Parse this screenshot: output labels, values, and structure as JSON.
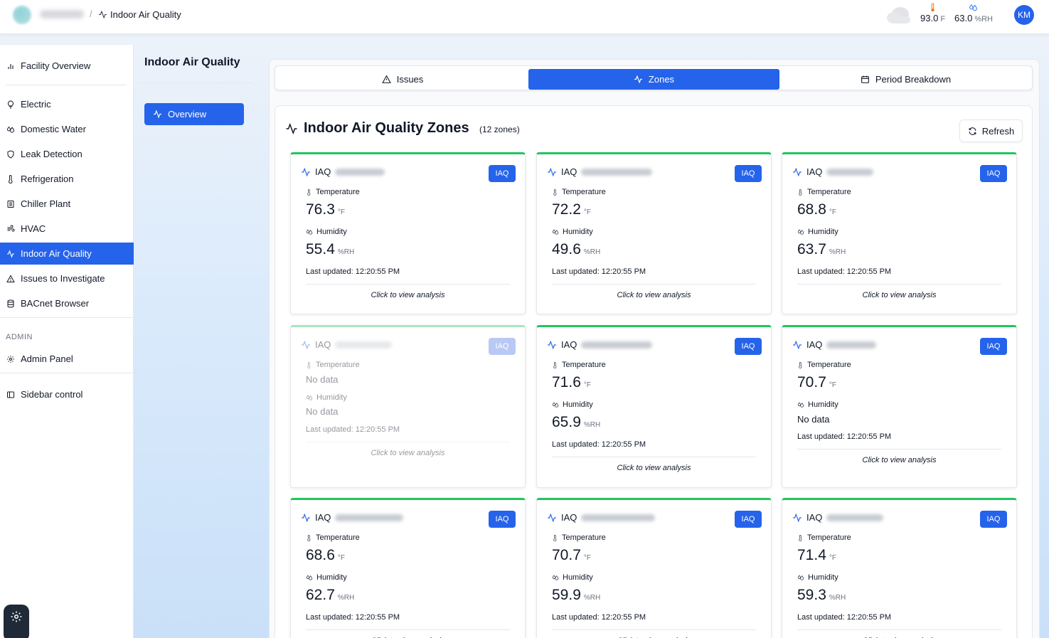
{
  "header": {
    "breadcrumb_current": "Indoor Air Quality",
    "breadcrumb_separator": "/",
    "temperature_value": "93.0",
    "temperature_unit": "F",
    "humidity_value": "63.0",
    "humidity_unit": "%RH",
    "avatar_initials": "KM"
  },
  "sidebar": {
    "items": [
      {
        "label": "Facility Overview",
        "icon": "bar-chart-icon"
      },
      {
        "label": "Electric",
        "icon": "lightbulb-icon"
      },
      {
        "label": "Domestic Water",
        "icon": "droplets-icon"
      },
      {
        "label": "Leak Detection",
        "icon": "shield-icon"
      },
      {
        "label": "Refrigeration",
        "icon": "thermometer-icon"
      },
      {
        "label": "Chiller Plant",
        "icon": "building-icon"
      },
      {
        "label": "HVAC",
        "icon": "wind-icon"
      },
      {
        "label": "Indoor Air Quality",
        "icon": "activity-icon"
      },
      {
        "label": "Issues to Investigate",
        "icon": "warning-icon"
      },
      {
        "label": "BACnet Browser",
        "icon": "database-icon"
      }
    ],
    "admin_section_label": "ADMIN",
    "admin_panel_label": "Admin Panel",
    "sidebar_control_label": "Sidebar control"
  },
  "subnav": {
    "title": "Indoor Air Quality",
    "overview_label": "Overview"
  },
  "tabs": {
    "issues": "Issues",
    "zones": "Zones",
    "period": "Period Breakdown"
  },
  "zones": {
    "title": "Indoor Air Quality Zones",
    "count_label": "(12 zones)",
    "refresh_label": "Refresh"
  },
  "card_labels": {
    "prefix": "IAQ",
    "badge": "IAQ",
    "temperature": "Temperature",
    "humidity": "Humidity",
    "temp_unit": "°F",
    "hum_unit": "%RH",
    "no_data": "No data",
    "updated": "Last updated: 12:20:55 PM",
    "cta": "Click to view analysis"
  },
  "cards": [
    {
      "temperature": "76.3",
      "humidity": "55.4"
    },
    {
      "temperature": "72.2",
      "humidity": "49.6"
    },
    {
      "temperature": "68.8",
      "humidity": "63.7"
    },
    {
      "temperature": "No data",
      "humidity": "No data"
    },
    {
      "temperature": "71.6",
      "humidity": "65.9"
    },
    {
      "temperature": "70.7",
      "humidity": "No data"
    },
    {
      "temperature": "68.6",
      "humidity": "62.7"
    },
    {
      "temperature": "70.7",
      "humidity": "59.9"
    },
    {
      "temperature": "71.4",
      "humidity": "59.3"
    }
  ],
  "colors": {
    "accent": "#2563eb",
    "status_ok": "#22c55e"
  }
}
